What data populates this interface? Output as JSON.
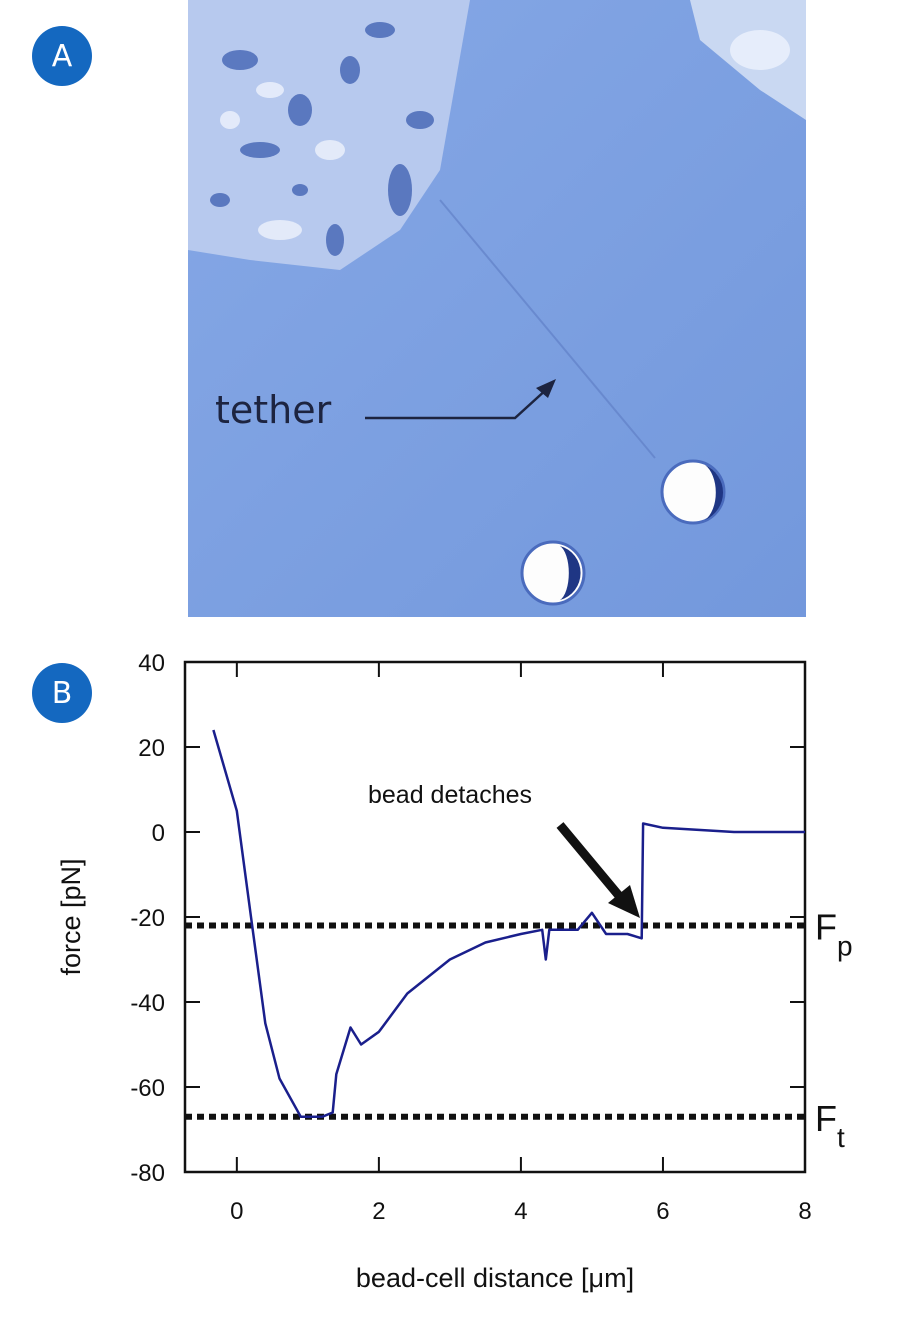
{
  "panel_labels": [
    "A",
    "B"
  ],
  "image": {
    "annotation": "tether"
  },
  "chart_data": {
    "type": "line",
    "x_label": "bead-cell distance [μm]",
    "y_label": "force [pN]",
    "annotation": "bead detaches",
    "color": "#1a1f8c",
    "x": [
      -0.33,
      0,
      0.2,
      0.4,
      0.6,
      0.9,
      1.2,
      1.35,
      1.4,
      1.6,
      1.75,
      2,
      2.4,
      3,
      3.5,
      4,
      4.3,
      4.35,
      4.4,
      4.8,
      5,
      5.2,
      5.5,
      5.7,
      5.72,
      6,
      7,
      8
    ],
    "values": [
      24,
      5,
      -20,
      -45,
      -58,
      -67,
      -67,
      -66,
      -57,
      -46,
      -50,
      -47,
      -38,
      -30,
      -26,
      -24,
      -23,
      -30,
      -23,
      -23,
      -19,
      -24,
      -24,
      -25,
      2,
      1,
      0,
      0
    ],
    "xlim": [
      -0.73,
      8
    ],
    "ylim": [
      -80,
      40
    ],
    "xticks": [
      0,
      2,
      4,
      6,
      8
    ],
    "yticks": [
      -80,
      -60,
      -40,
      -20,
      0,
      20,
      40
    ],
    "reference_lines": [
      {
        "value": -22,
        "label": "F",
        "subscript": "p"
      },
      {
        "value": -67,
        "label": "F",
        "subscript": "t"
      }
    ]
  }
}
